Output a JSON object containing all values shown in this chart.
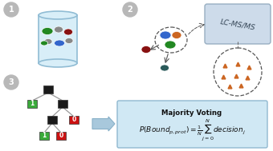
{
  "bg_color": "#ffffff",
  "step_circle_color": "#b8b8b8",
  "beaker_fill": "#d8eef8",
  "beaker_edge": "#90bcd4",
  "lc_ms_box_color": "#c8d8e8",
  "lc_ms_text": "LC-MS/MS",
  "majority_box_color": "#d0e8f4",
  "majority_box_edge": "#90b8d0",
  "majority_title": "Majority Voting",
  "arrow_color": "#a8c8dc",
  "tree_node_color": "#1a1a1a",
  "tree_leaf_green": "#3aaa3a",
  "tree_leaf_red": "#cc1111",
  "tri_color": "#cc6622",
  "prot_blue": "#3366cc",
  "prot_orange": "#cc6622",
  "prot_green": "#228822",
  "prot_darkred": "#881111",
  "prot_grey": "#888888",
  "prot_teal": "#2a5a5a"
}
